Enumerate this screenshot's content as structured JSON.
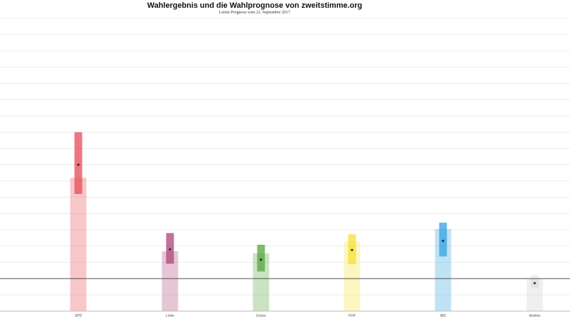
{
  "chart_data": {
    "type": "bar",
    "title": "Wahlergebnis und die Wahlprognose von zweitstimme.org",
    "subtitle": "Letzte Prognose vom 22. September 2017",
    "xlabel": "",
    "ylabel": "",
    "ylim": [
      0,
      45
    ],
    "grid": true,
    "threshold": 5,
    "categories": [
      "SPD",
      "Linke",
      "Grüne",
      "FDP",
      "AfD",
      "Andere"
    ],
    "colors": [
      "#e8505b",
      "#b04a7a",
      "#5aa845",
      "#f5e23a",
      "#3aa4e0",
      "#cccccc"
    ],
    "series": [
      {
        "name": "Wahlergebnis",
        "values": [
          20.5,
          9.2,
          8.9,
          10.7,
          12.6,
          5.0
        ]
      },
      {
        "name": "Wahlprognose",
        "point": [
          22.5,
          9.5,
          7.9,
          9.4,
          10.8,
          4.3
        ],
        "low": [
          18.0,
          7.3,
          6.1,
          7.2,
          8.4,
          3.6
        ],
        "high": [
          27.5,
          12.0,
          10.2,
          11.8,
          13.6,
          5.5
        ]
      }
    ]
  }
}
